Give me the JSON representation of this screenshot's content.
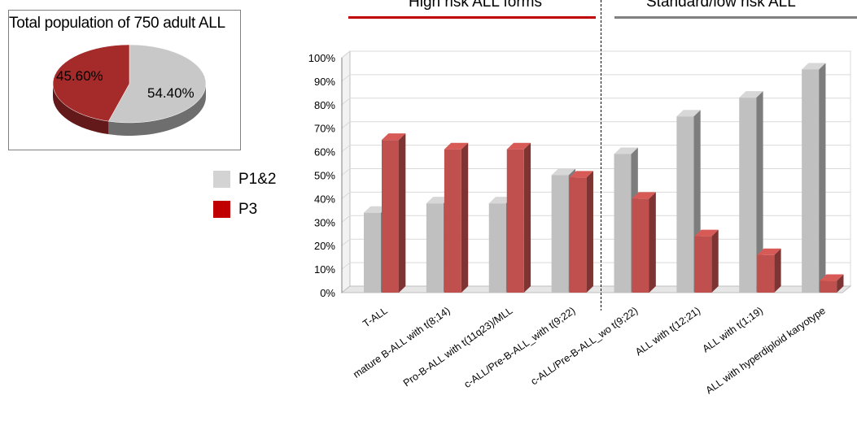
{
  "pie": {
    "title": "Total population of 750 adult ALL",
    "slices": [
      {
        "label": "54.40%",
        "value": 54.4,
        "color": "#c8c8c8"
      },
      {
        "label": "45.60%",
        "value": 45.6,
        "color": "#a52a2a"
      }
    ]
  },
  "legend": [
    {
      "label": "P1&2",
      "color": "#d3d3d3"
    },
    {
      "label": "P3",
      "color": "#c00000"
    }
  ],
  "groups": {
    "high": {
      "label": "High risk ALL forms",
      "color": "#c00000"
    },
    "standard": {
      "label": "Standard/low risk ALL",
      "color": "#808080"
    }
  },
  "chart_data": {
    "type": "bar",
    "categories": [
      "T-ALL",
      "mature B-ALL with t(8;14)",
      "Pro-B-ALL with t(11q23)/MLL",
      "c-ALL/Pre-B-ALL_with t(9;22)",
      "c-ALL/Pre-B-ALL_wo t(9;22)",
      "ALL with t(12;21)",
      "ALL with t(1;19)",
      "ALL with hyperdiploid karyotype"
    ],
    "series": [
      {
        "name": "P1&2",
        "values": [
          34,
          38,
          38,
          50,
          59,
          75,
          83,
          95
        ],
        "color": "#c0c0c0"
      },
      {
        "name": "P3",
        "values": [
          65,
          61,
          61,
          49,
          40,
          24,
          16,
          5
        ],
        "color": "#c0504d"
      }
    ],
    "yticks": [
      "0%",
      "10%",
      "20%",
      "30%",
      "40%",
      "50%",
      "60%",
      "70%",
      "80%",
      "90%",
      "100%"
    ],
    "ylim": [
      0,
      100
    ],
    "grid": true,
    "legend_position": "left"
  }
}
